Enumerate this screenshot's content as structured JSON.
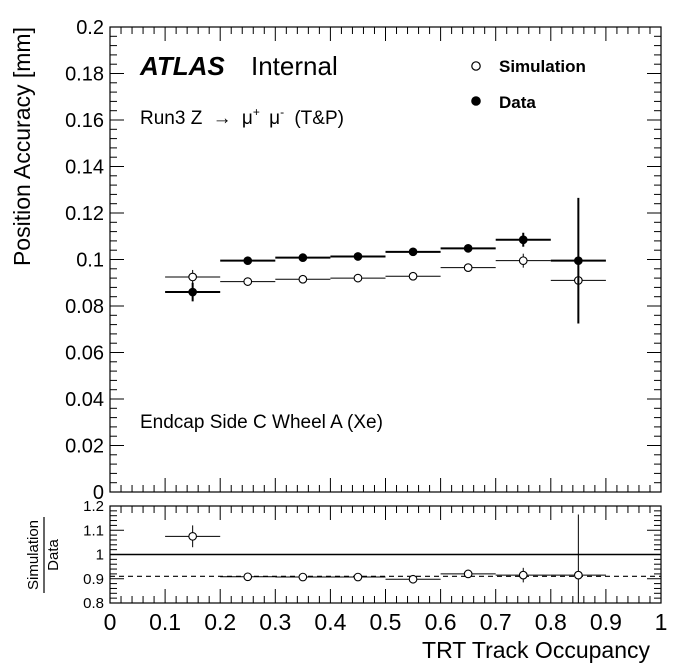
{
  "chart_data": [
    {
      "type": "scatter",
      "panel": "main",
      "experiment": "ATLAS",
      "experiment_status": "Internal",
      "process_prefix": "Run3 Z",
      "process_arrow": "→",
      "process_mu": "μ",
      "process_plus": "+",
      "process_minus": "-",
      "process_suffix": "(T&P)",
      "region_label": "Endcap Side C Wheel A (Xe)",
      "ylabel": "Position Accuracy [mm]",
      "xlim": [
        0,
        1
      ],
      "ylim": [
        0,
        0.2
      ],
      "y_ticks": [
        "0",
        "0.02",
        "0.04",
        "0.06",
        "0.08",
        "0.1",
        "0.12",
        "0.14",
        "0.16",
        "0.18",
        "0.2"
      ],
      "legend": {
        "placement": "top-right",
        "entries": [
          "Simulation",
          "Data"
        ]
      },
      "series": [
        {
          "name": "Simulation",
          "marker": "open-circle",
          "x": [
            0.15,
            0.25,
            0.35,
            0.45,
            0.55,
            0.65,
            0.75,
            0.85
          ],
          "x_halfwidth": 0.05,
          "y": [
            0.0925,
            0.0905,
            0.0915,
            0.092,
            0.0928,
            0.0965,
            0.0995,
            0.091
          ],
          "y_err": [
            0.003,
            0.0008,
            0.0008,
            0.0008,
            0.0008,
            0.001,
            0.003,
            0.008
          ]
        },
        {
          "name": "Data",
          "marker": "filled-circle",
          "x": [
            0.15,
            0.25,
            0.35,
            0.45,
            0.55,
            0.65,
            0.75,
            0.85
          ],
          "x_halfwidth": 0.05,
          "y": [
            0.086,
            0.0995,
            0.1008,
            0.1013,
            0.1033,
            0.1048,
            0.1085,
            0.0995
          ],
          "y_err": [
            0.004,
            0.001,
            0.001,
            0.001,
            0.001,
            0.0012,
            0.003,
            0.027
          ]
        }
      ]
    },
    {
      "type": "scatter",
      "panel": "ratio",
      "ylabel_numerator": "Simulation",
      "ylabel_denominator": "Data",
      "xlabel": "TRT Track Occupancy",
      "xlim": [
        0,
        1
      ],
      "ylim": [
        0.8,
        1.2
      ],
      "x_ticks": [
        "0",
        "0.1",
        "0.2",
        "0.3",
        "0.4",
        "0.5",
        "0.6",
        "0.7",
        "0.8",
        "0.9",
        "1"
      ],
      "y_ticks": [
        "0.8",
        "0.9",
        "1",
        "1.1",
        "1.2"
      ],
      "reference_line": 1.0,
      "mean_line": 0.91,
      "series": [
        {
          "name": "Simulation/Data",
          "marker": "open-circle",
          "x": [
            0.15,
            0.25,
            0.35,
            0.45,
            0.55,
            0.65,
            0.75,
            0.85
          ],
          "x_halfwidth": 0.05,
          "y": [
            1.075,
            0.908,
            0.907,
            0.907,
            0.898,
            0.92,
            0.915,
            0.915
          ],
          "y_err": [
            0.045,
            0.004,
            0.004,
            0.004,
            0.004,
            0.004,
            0.03,
            0.25
          ]
        }
      ]
    }
  ]
}
